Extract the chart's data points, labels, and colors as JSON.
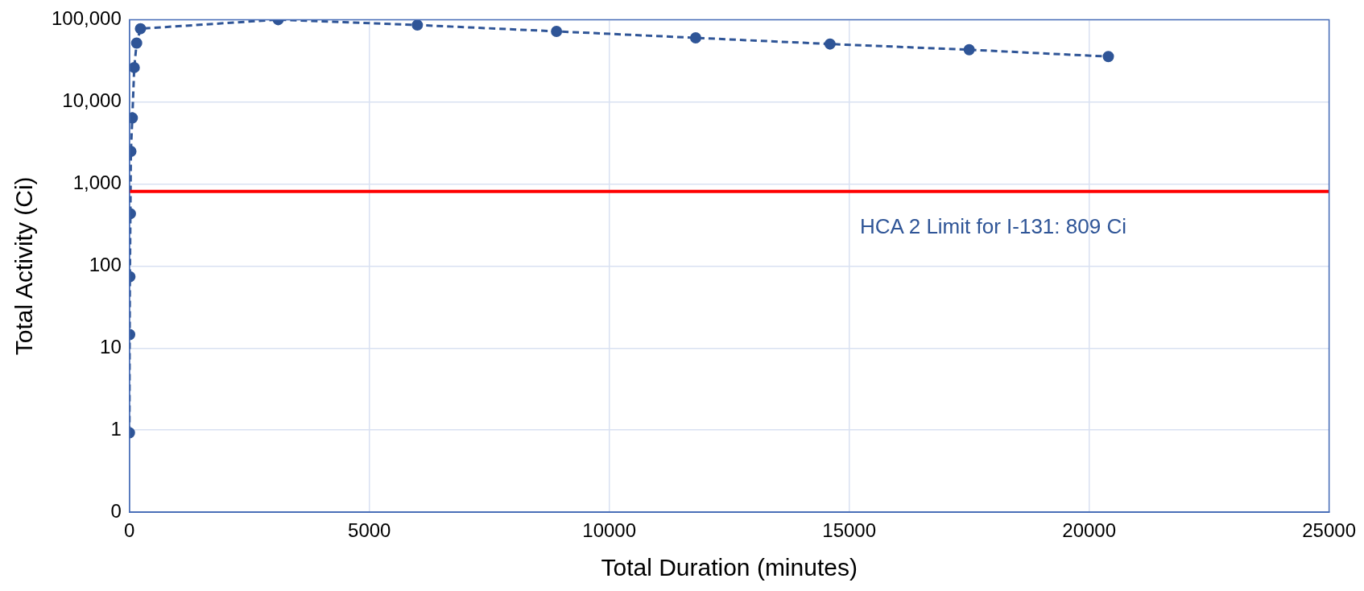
{
  "chart_data": {
    "type": "line",
    "xlabel": "Total Duration (minutes)",
    "ylabel": "Total Activity (Ci)",
    "x": [
      0,
      5,
      10,
      20,
      30,
      60,
      100,
      150,
      230,
      3100,
      6000,
      8900,
      11800,
      14600,
      17500,
      20400
    ],
    "series": [
      {
        "color": "#2f5597",
        "values": [
          0.93,
          14.6,
          74,
          433,
          2490,
          6340,
          26100,
          51800,
          77600,
          100000,
          86000,
          72000,
          60000,
          50500,
          43000,
          35500
        ]
      }
    ],
    "marker": "circle",
    "line_style": "dashed",
    "log": "y",
    "grid": true,
    "legend": false,
    "xlim": [
      0,
      25000
    ],
    "xticks": [
      0,
      5000,
      10000,
      15000,
      20000,
      25000
    ],
    "ylim": [
      0.1,
      100000
    ],
    "yticks": [
      {
        "value": 0.1,
        "label": "0"
      },
      {
        "value": 1,
        "label": "1"
      },
      {
        "value": 10,
        "label": "10"
      },
      {
        "value": 100,
        "label": "100"
      },
      {
        "value": 1000,
        "label": "1,000"
      },
      {
        "value": 10000,
        "label": "10,000"
      },
      {
        "value": 100000,
        "label": "100,000"
      }
    ],
    "ref_lines": [
      {
        "axis": "y",
        "value": 809,
        "label": "HCA 2 Limit for I-131: 809 Ci",
        "color": "#ff0000",
        "line_style": "solid"
      }
    ]
  }
}
